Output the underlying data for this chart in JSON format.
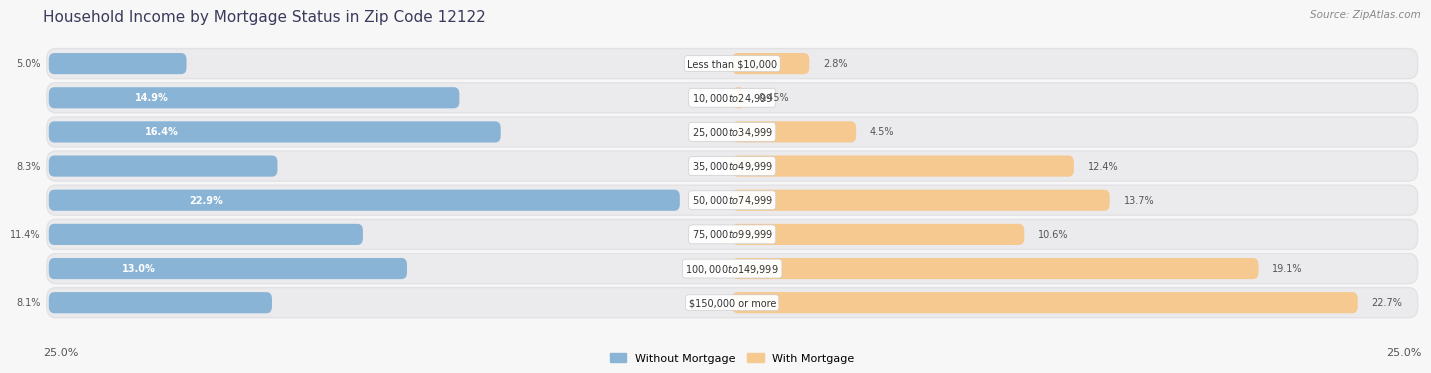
{
  "title": "Household Income by Mortgage Status in Zip Code 12122",
  "source": "Source: ZipAtlas.com",
  "categories": [
    "Less than $10,000",
    "$10,000 to $24,999",
    "$25,000 to $34,999",
    "$35,000 to $49,999",
    "$50,000 to $74,999",
    "$75,000 to $99,999",
    "$100,000 to $149,999",
    "$150,000 or more"
  ],
  "without_mortgage": [
    5.0,
    14.9,
    16.4,
    8.3,
    22.9,
    11.4,
    13.0,
    8.1
  ],
  "with_mortgage": [
    2.8,
    0.45,
    4.5,
    12.4,
    13.7,
    10.6,
    19.1,
    22.7
  ],
  "max_val": 25.0,
  "blue_color": "#8ab4d5",
  "orange_color": "#f5c990",
  "row_bg": "#e8e8ea",
  "row_inner_bg": "#f0f0f2",
  "legend_blue": "Without Mortgage",
  "legend_orange": "With Mortgage",
  "axis_label_left": "25.0%",
  "axis_label_right": "25.0%"
}
